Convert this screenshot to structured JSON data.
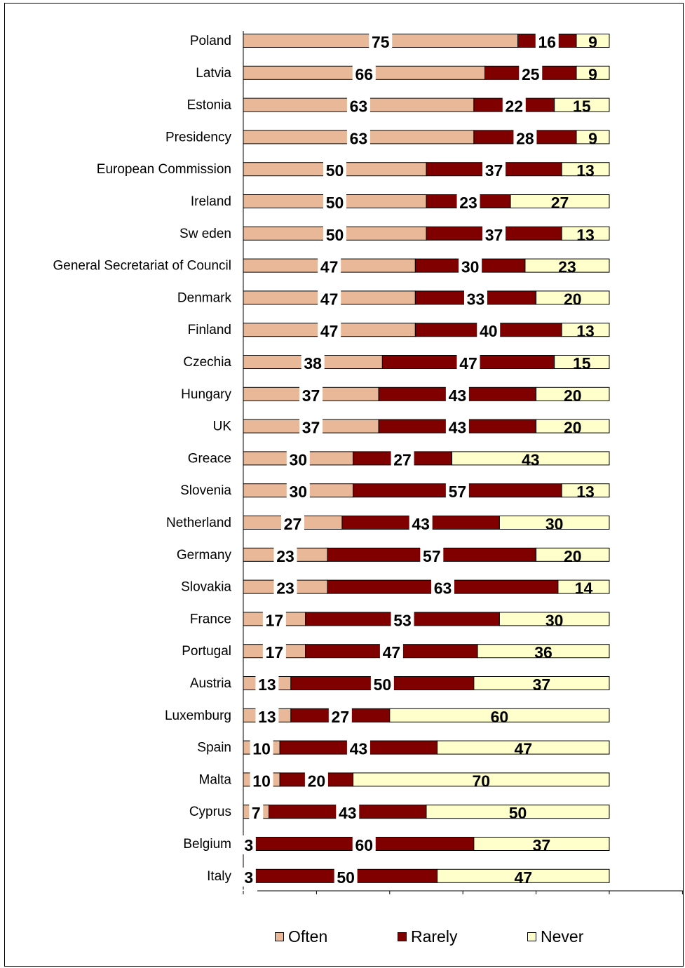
{
  "chart_data": {
    "type": "bar",
    "orientation": "horizontal",
    "stacked": true,
    "categories": [
      "Poland",
      "Latvia",
      "Estonia",
      "Presidency",
      "European Commission",
      "Ireland",
      "Sw eden",
      "General Secretariat of Council",
      "Denmark",
      "Finland",
      "Czechia",
      "Hungary",
      "UK",
      "Greace",
      "Slovenia",
      "Netherland",
      "Germany",
      "Slovakia",
      "France",
      "Portugal",
      "Austria",
      "Luxemburg",
      "Spain",
      "Malta",
      "Cyprus",
      "Belgium",
      "Italy"
    ],
    "series": [
      {
        "name": "Often",
        "color": "#e8b898",
        "values": [
          75,
          66,
          63,
          63,
          50,
          50,
          50,
          47,
          47,
          47,
          38,
          37,
          37,
          30,
          30,
          27,
          23,
          23,
          17,
          17,
          13,
          13,
          10,
          10,
          7,
          3,
          3
        ]
      },
      {
        "name": "Rarely",
        "color": "#800000",
        "values": [
          16,
          25,
          22,
          28,
          37,
          23,
          37,
          30,
          33,
          40,
          47,
          43,
          43,
          27,
          57,
          43,
          57,
          63,
          53,
          47,
          50,
          27,
          43,
          20,
          43,
          60,
          50
        ]
      },
      {
        "name": "Never",
        "color": "#ffffcc",
        "values": [
          9,
          9,
          15,
          9,
          13,
          27,
          13,
          23,
          20,
          13,
          15,
          20,
          20,
          43,
          13,
          30,
          20,
          14,
          30,
          36,
          37,
          60,
          47,
          70,
          50,
          37,
          47
        ]
      }
    ],
    "xlim": [
      0,
      100
    ],
    "legend_position": "bottom",
    "grid": false
  }
}
